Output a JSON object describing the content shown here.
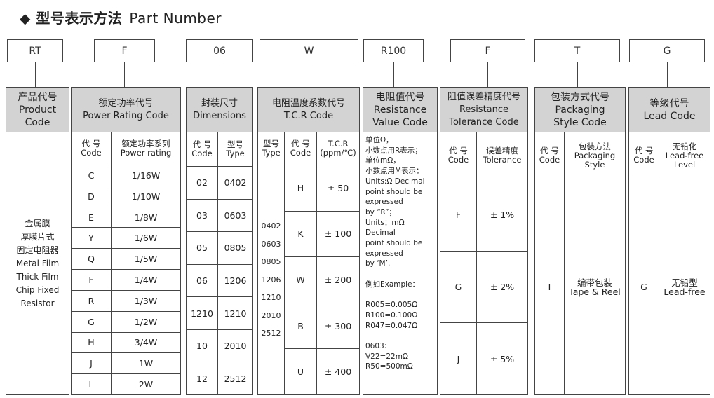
{
  "title": {
    "zh": "◆ 型号表示方法",
    "en": "Part Number"
  },
  "codes": [
    "RT",
    "F",
    "06",
    "W",
    "R100",
    "F",
    "T",
    "G"
  ],
  "product": {
    "zh": "产品代号",
    "en1": "Product",
    "en2": "Code",
    "body_zh": [
      "金属膜",
      "厚膜片式",
      "固定电阻器"
    ],
    "body_en": [
      "Metal Film",
      "Thick Film",
      "Chip Fixed",
      "Resistor"
    ]
  },
  "power": {
    "zh": "额定功率代号",
    "en": "Power Rating Code",
    "h1_zh": "代 号",
    "h1_en": "Code",
    "h2_zh": "额定功率系列",
    "h2_en": "Power rating",
    "rows": [
      [
        "C",
        "1/16W"
      ],
      [
        "D",
        "1/10W"
      ],
      [
        "E",
        "1/8W"
      ],
      [
        "Y",
        "1/6W"
      ],
      [
        "Q",
        "1/5W"
      ],
      [
        "F",
        "1/4W"
      ],
      [
        "R",
        "1/3W"
      ],
      [
        "G",
        "1/2W"
      ],
      [
        "H",
        "3/4W"
      ],
      [
        "J",
        "1W"
      ],
      [
        "L",
        "2W"
      ]
    ]
  },
  "dim": {
    "zh": "封装尺寸",
    "en": "Dimensions",
    "h1_zh": "代 号",
    "h1_en": "Code",
    "h2_zh": "型号",
    "h2_en": "Type",
    "rows": [
      [
        "02",
        "0402"
      ],
      [
        "03",
        "0603"
      ],
      [
        "05",
        "0805"
      ],
      [
        "06",
        "1206"
      ],
      [
        "1210",
        "1210"
      ],
      [
        "10",
        "2010"
      ],
      [
        "12",
        "2512"
      ]
    ]
  },
  "tcr": {
    "zh": "电阻温度系数代号",
    "en": "T.C.R Code",
    "h1_zh": "型号",
    "h1_en": "Type",
    "h2_zh": "代 号",
    "h2_en": "Code",
    "h3_a": "T.C.R",
    "h3_b": "(ppm/℃)",
    "types": [
      "0402",
      "0603",
      "0805",
      "1206",
      "1210",
      "2010",
      "2512"
    ],
    "rows": [
      [
        "H",
        "± 50"
      ],
      [
        "K",
        "± 100"
      ],
      [
        "W",
        "± 200"
      ],
      [
        "B",
        "± 300"
      ],
      [
        "U",
        "± 400"
      ]
    ]
  },
  "res": {
    "zh": "电阻值代号",
    "en1": "Resistance",
    "en2": "Value Code",
    "note": "单位Ω，\n小数点用R表示；\n单位mΩ，\n小数点用M表示；\nUnits:Ω Decimal\npoint should be\nexpressed\nby “R”；\nUnits：mΩ\nDecimal\npoint should be\nexpressed\nby ‘M’.\n\n例如Example：\n\nR005=0.005Ω\nR100=0.100Ω\nR047=0.047Ω\n\n0603:\nV22=22mΩ\nR50=500mΩ"
  },
  "tol": {
    "zh": "阻值误差精度代号",
    "en1": "Resistance",
    "en2": "Tolerance Code",
    "h1_zh": "代 号",
    "h1_en": "Code",
    "h2_zh": "误差精度",
    "h2_en": "Tolerance",
    "rows": [
      [
        "F",
        "± 1%"
      ],
      [
        "G",
        "± 2%"
      ],
      [
        "J",
        "± 5%"
      ]
    ]
  },
  "pack": {
    "zh": "包装方式代号",
    "en1": "Packaging",
    "en2": "Style Code",
    "h1_zh": "代 号",
    "h1_en": "Code",
    "h2_zh": "包装方法",
    "h2_en1": "Packaging",
    "h2_en2": "Style",
    "code": "T",
    "zh_val": "编带包装",
    "en_val": "Tape & Reel"
  },
  "lead": {
    "zh": "等级代号",
    "en": "Lead Code",
    "h1_zh": "代 号",
    "h1_en": "Code",
    "h2_zh": "无铅化",
    "h2_en1": "Lead-free",
    "h2_en2": "Level",
    "code": "G",
    "zh_val": "无铅型",
    "en_val": "Lead-free"
  }
}
